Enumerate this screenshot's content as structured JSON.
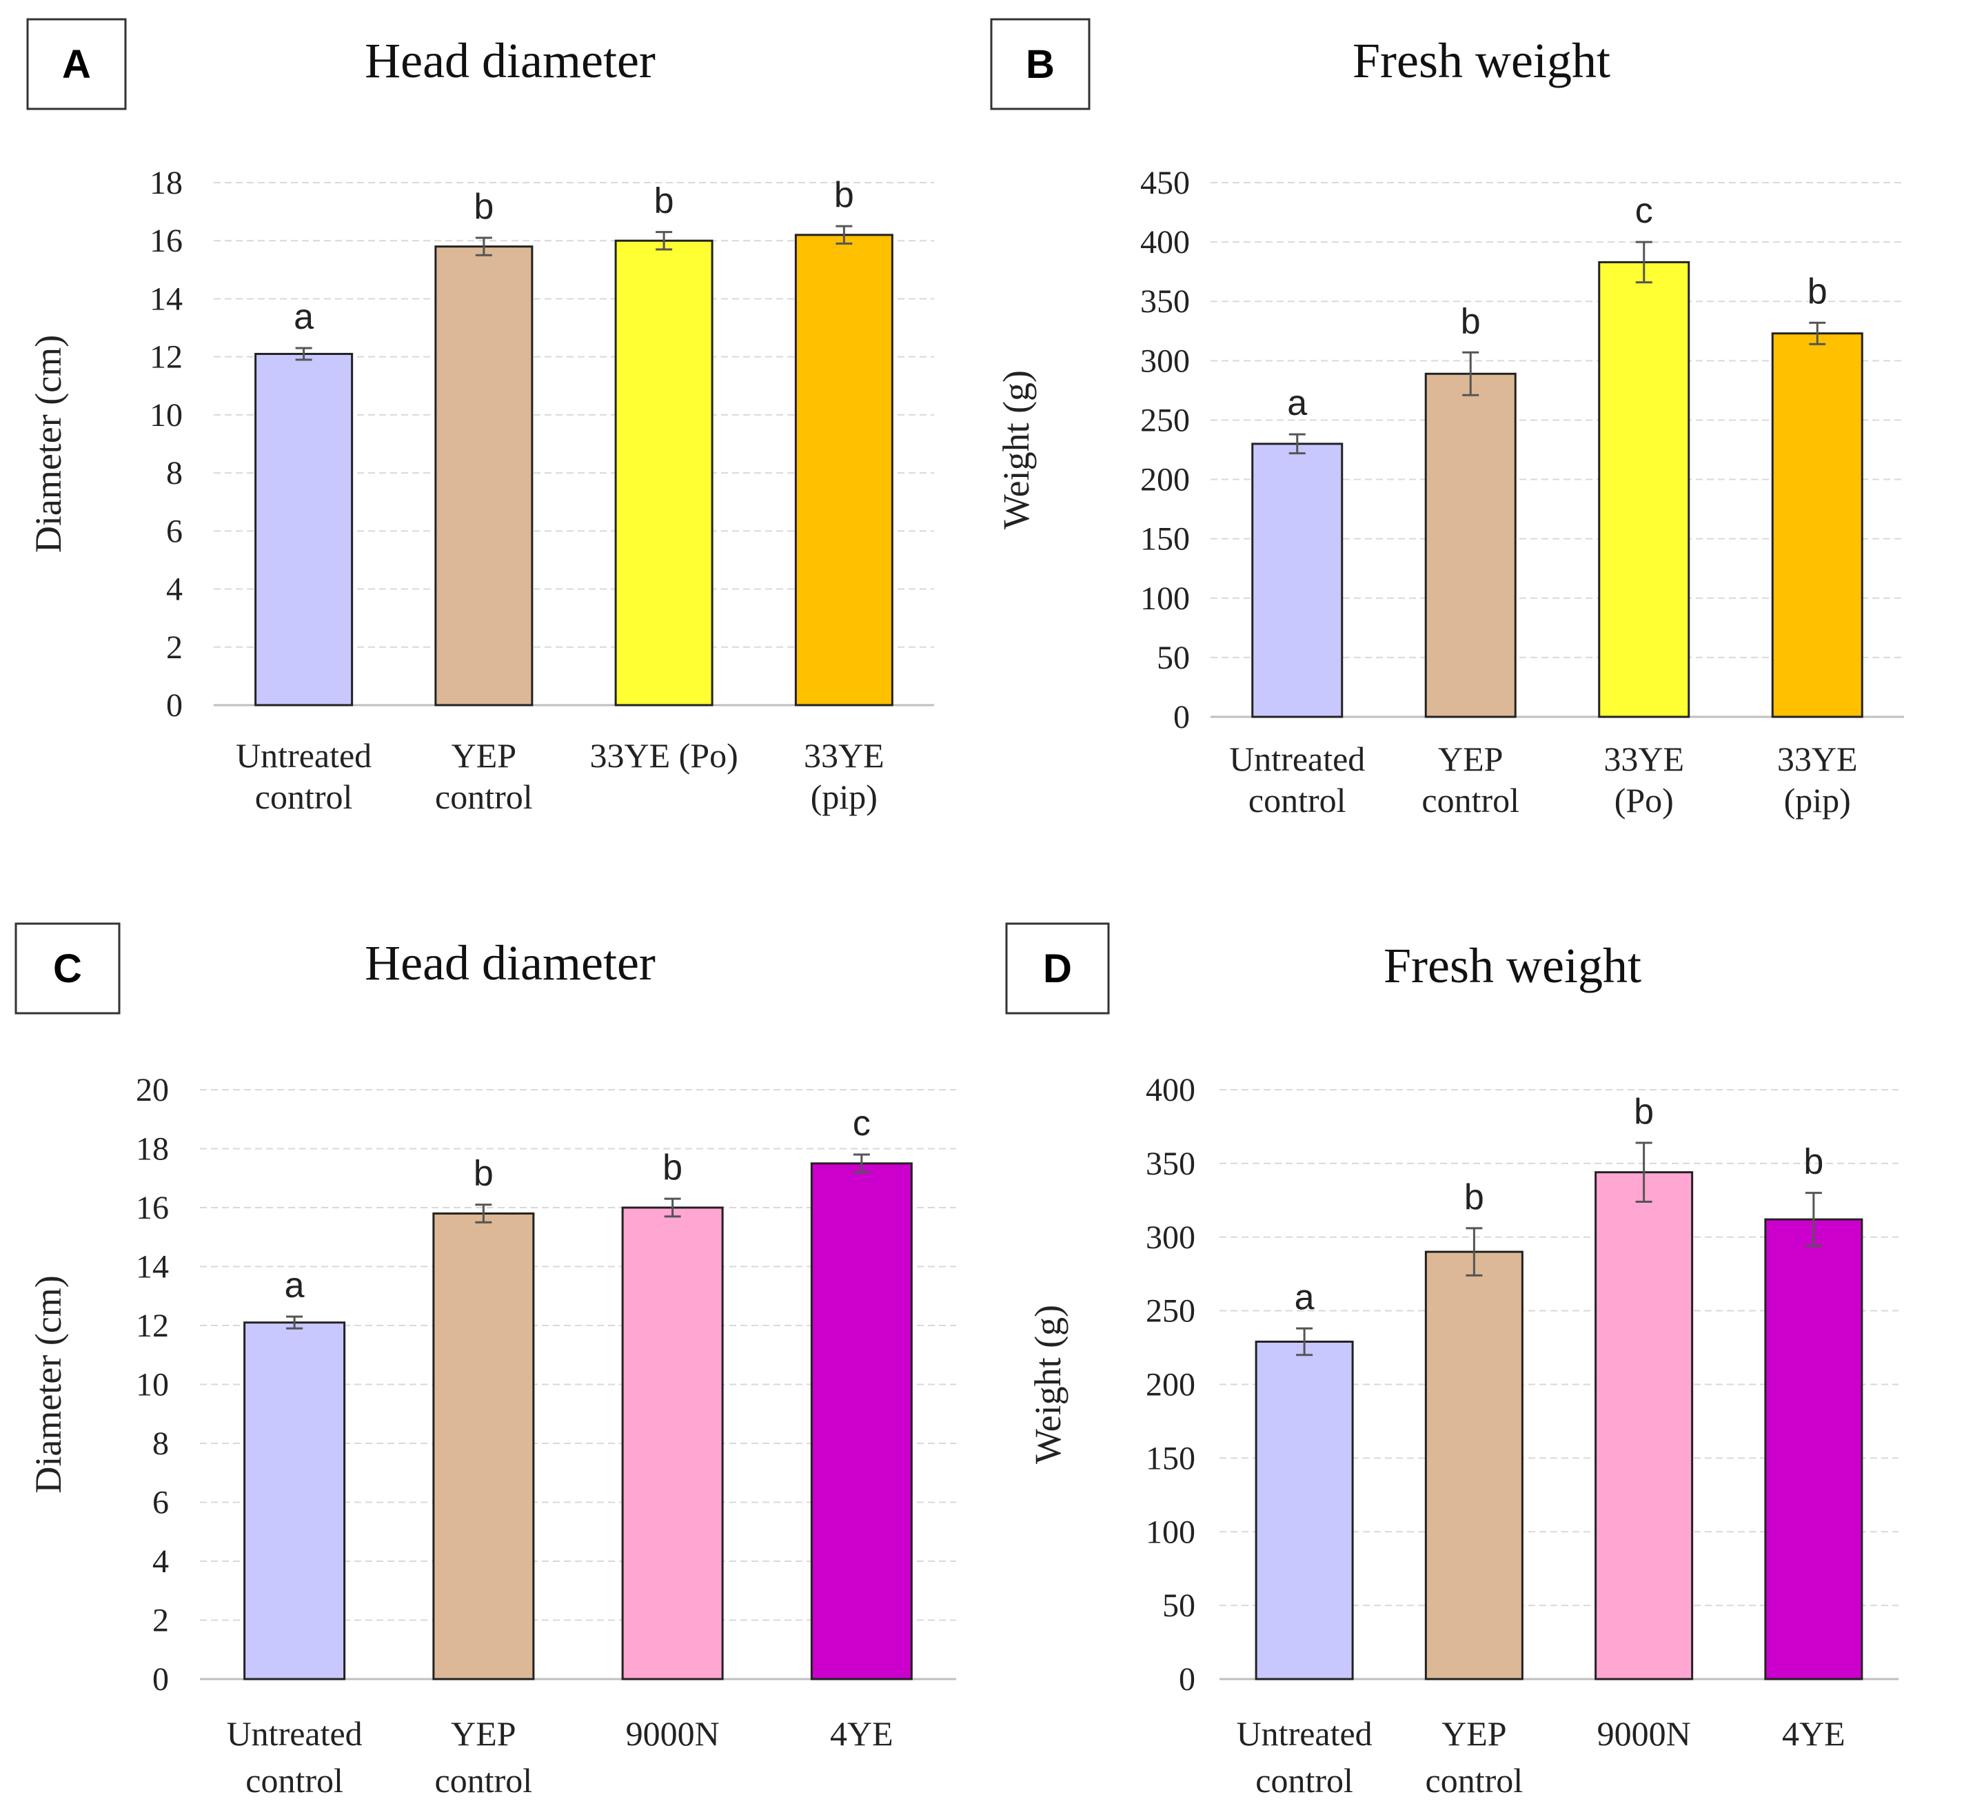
{
  "colors": {
    "untreated": "#c8c8ff",
    "yep": "#dcb896",
    "po": "#ffff33",
    "pip": "#ffc000",
    "n9000": "#ffa6d2",
    "ye4": "#cc00cc",
    "grid": "#d9d9d9",
    "bar_edge": "#222222"
  },
  "chart_data": [
    {
      "panel": "A",
      "type": "bar",
      "title": "Head diameter",
      "ylabel": "Diameter (cm)",
      "xlabel": "",
      "ylim": [
        0,
        18
      ],
      "yticks": [
        0,
        2,
        4,
        6,
        8,
        10,
        12,
        14,
        16,
        18
      ],
      "categories": [
        [
          "Untreated",
          "control"
        ],
        [
          "YEP",
          "control"
        ],
        [
          "33YE (Po)"
        ],
        [
          "33YE",
          "(pip)"
        ]
      ],
      "values": [
        12.1,
        15.8,
        16.0,
        16.2
      ],
      "errors": [
        0.2,
        0.3,
        0.3,
        0.3
      ],
      "letters": [
        "a",
        "b",
        "b",
        "b"
      ],
      "color_keys": [
        "untreated",
        "yep",
        "po",
        "pip"
      ],
      "grid": true
    },
    {
      "panel": "B",
      "type": "bar",
      "title": "Fresh weight",
      "ylabel": "Weight (g)",
      "xlabel": "",
      "ylim": [
        0,
        450
      ],
      "yticks": [
        0,
        50,
        100,
        150,
        200,
        250,
        300,
        350,
        400,
        450
      ],
      "categories": [
        [
          "Untreated",
          "control"
        ],
        [
          "YEP",
          "control"
        ],
        [
          "33YE",
          "(Po)"
        ],
        [
          "33YE",
          "(pip)"
        ]
      ],
      "values": [
        230,
        289,
        383,
        323
      ],
      "errors": [
        8,
        18,
        17,
        9
      ],
      "letters": [
        "a",
        "b",
        "c",
        "b"
      ],
      "color_keys": [
        "untreated",
        "yep",
        "po",
        "pip"
      ],
      "grid": true
    },
    {
      "panel": "C",
      "type": "bar",
      "title": "Head diameter",
      "ylabel": "Diameter (cm)",
      "xlabel": "",
      "ylim": [
        0,
        20
      ],
      "yticks": [
        0,
        2,
        4,
        6,
        8,
        10,
        12,
        14,
        16,
        18,
        20
      ],
      "categories": [
        [
          "Untreated",
          "control"
        ],
        [
          "YEP",
          "control"
        ],
        [
          "9000N"
        ],
        [
          "4YE"
        ]
      ],
      "values": [
        12.1,
        15.8,
        16.0,
        17.5
      ],
      "errors": [
        0.2,
        0.3,
        0.3,
        0.3
      ],
      "letters": [
        "a",
        "b",
        "b",
        "c"
      ],
      "color_keys": [
        "untreated",
        "yep",
        "n9000",
        "ye4"
      ],
      "grid": true
    },
    {
      "panel": "D",
      "type": "bar",
      "title": "Fresh weight",
      "ylabel": "Weight (g)",
      "xlabel": "",
      "ylim": [
        0,
        400
      ],
      "yticks": [
        0,
        50,
        100,
        150,
        200,
        250,
        300,
        350,
        400
      ],
      "categories": [
        [
          "Untreated",
          "control"
        ],
        [
          "YEP",
          "control"
        ],
        [
          "9000N"
        ],
        [
          "4YE"
        ]
      ],
      "values": [
        229,
        290,
        344,
        312
      ],
      "errors": [
        9,
        16,
        20,
        18
      ],
      "letters": [
        "a",
        "b",
        "b",
        "b"
      ],
      "color_keys": [
        "untreated",
        "yep",
        "n9000",
        "ye4"
      ],
      "grid": true
    }
  ]
}
